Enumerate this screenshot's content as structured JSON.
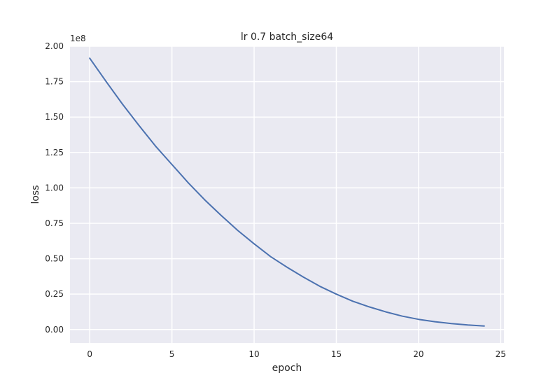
{
  "chart_data": {
    "type": "line",
    "title": "lr 0.7 batch_size64",
    "xlabel": "epoch",
    "ylabel": "loss",
    "y_multiplier_label": "1e8",
    "xlim": [
      -1.2,
      25.2
    ],
    "ylim": [
      -0.095,
      2.0
    ],
    "x_ticks": [
      0,
      5,
      10,
      15,
      20,
      25
    ],
    "x_tick_labels": [
      "0",
      "5",
      "10",
      "15",
      "20",
      "25"
    ],
    "y_ticks": [
      0.0,
      0.25,
      0.5,
      0.75,
      1.0,
      1.25,
      1.5,
      1.75,
      2.0
    ],
    "y_tick_labels": [
      "0.00",
      "0.25",
      "0.50",
      "0.75",
      "1.00",
      "1.25",
      "1.50",
      "1.75",
      "2.00"
    ],
    "grid": true,
    "colors": {
      "plot_background": "#eaeaf2",
      "grid": "#ffffff",
      "line": "#4c72b0",
      "text": "#262626"
    },
    "series": [
      {
        "x": [
          0,
          1,
          2,
          3,
          4,
          5,
          6,
          7,
          8,
          9,
          10,
          11,
          12,
          13,
          14,
          15,
          16,
          17,
          18,
          19,
          20,
          21,
          22,
          23,
          24
        ],
        "values": [
          1.915,
          1.75,
          1.59,
          1.44,
          1.295,
          1.165,
          1.035,
          0.915,
          0.805,
          0.7,
          0.605,
          0.515,
          0.44,
          0.37,
          0.305,
          0.25,
          0.2,
          0.16,
          0.125,
          0.095,
          0.072,
          0.055,
          0.042,
          0.032,
          0.025
        ]
      }
    ]
  }
}
